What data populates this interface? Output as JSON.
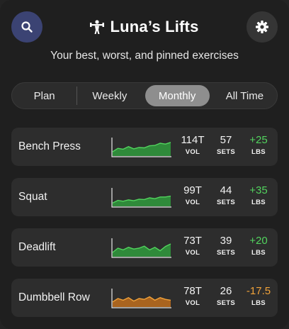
{
  "header": {
    "title": "Luna’s Lifts",
    "subtitle": "Your best, worst, and pinned exercises",
    "search_icon": "search-icon",
    "settings_icon": "gear-icon",
    "title_icon": "dumbbell-icon"
  },
  "tabs": [
    {
      "label": "Plan",
      "active": false
    },
    {
      "label": "Weekly",
      "active": false
    },
    {
      "label": "Monthly",
      "active": true
    },
    {
      "label": "All Time",
      "active": false
    }
  ],
  "stat_labels": {
    "vol": "VOL",
    "sets": "SETS",
    "lbs": "LBS"
  },
  "colors": {
    "positive": "#52d45e",
    "negative": "#f0a23a",
    "accent": "#3b4373"
  },
  "exercises": [
    {
      "name": "Bench Press",
      "vol": "114T",
      "sets": "57",
      "lbs": "+25",
      "trend": "positive",
      "spark": [
        0.25,
        0.45,
        0.4,
        0.55,
        0.42,
        0.5,
        0.48,
        0.6,
        0.62,
        0.75,
        0.7,
        0.8
      ]
    },
    {
      "name": "Squat",
      "vol": "99T",
      "sets": "44",
      "lbs": "+35",
      "trend": "positive",
      "spark": [
        0.2,
        0.35,
        0.3,
        0.38,
        0.33,
        0.42,
        0.4,
        0.5,
        0.45,
        0.55,
        0.55,
        0.6
      ]
    },
    {
      "name": "Deadlift",
      "vol": "73T",
      "sets": "39",
      "lbs": "+20",
      "trend": "positive",
      "spark": [
        0.25,
        0.5,
        0.4,
        0.55,
        0.45,
        0.5,
        0.62,
        0.4,
        0.55,
        0.35,
        0.6,
        0.75
      ]
    },
    {
      "name": "Dumbbell Row",
      "vol": "78T",
      "sets": "26",
      "lbs": "-17.5",
      "trend": "negative",
      "spark": [
        0.3,
        0.5,
        0.4,
        0.55,
        0.35,
        0.5,
        0.45,
        0.6,
        0.4,
        0.55,
        0.45,
        0.4
      ]
    }
  ]
}
